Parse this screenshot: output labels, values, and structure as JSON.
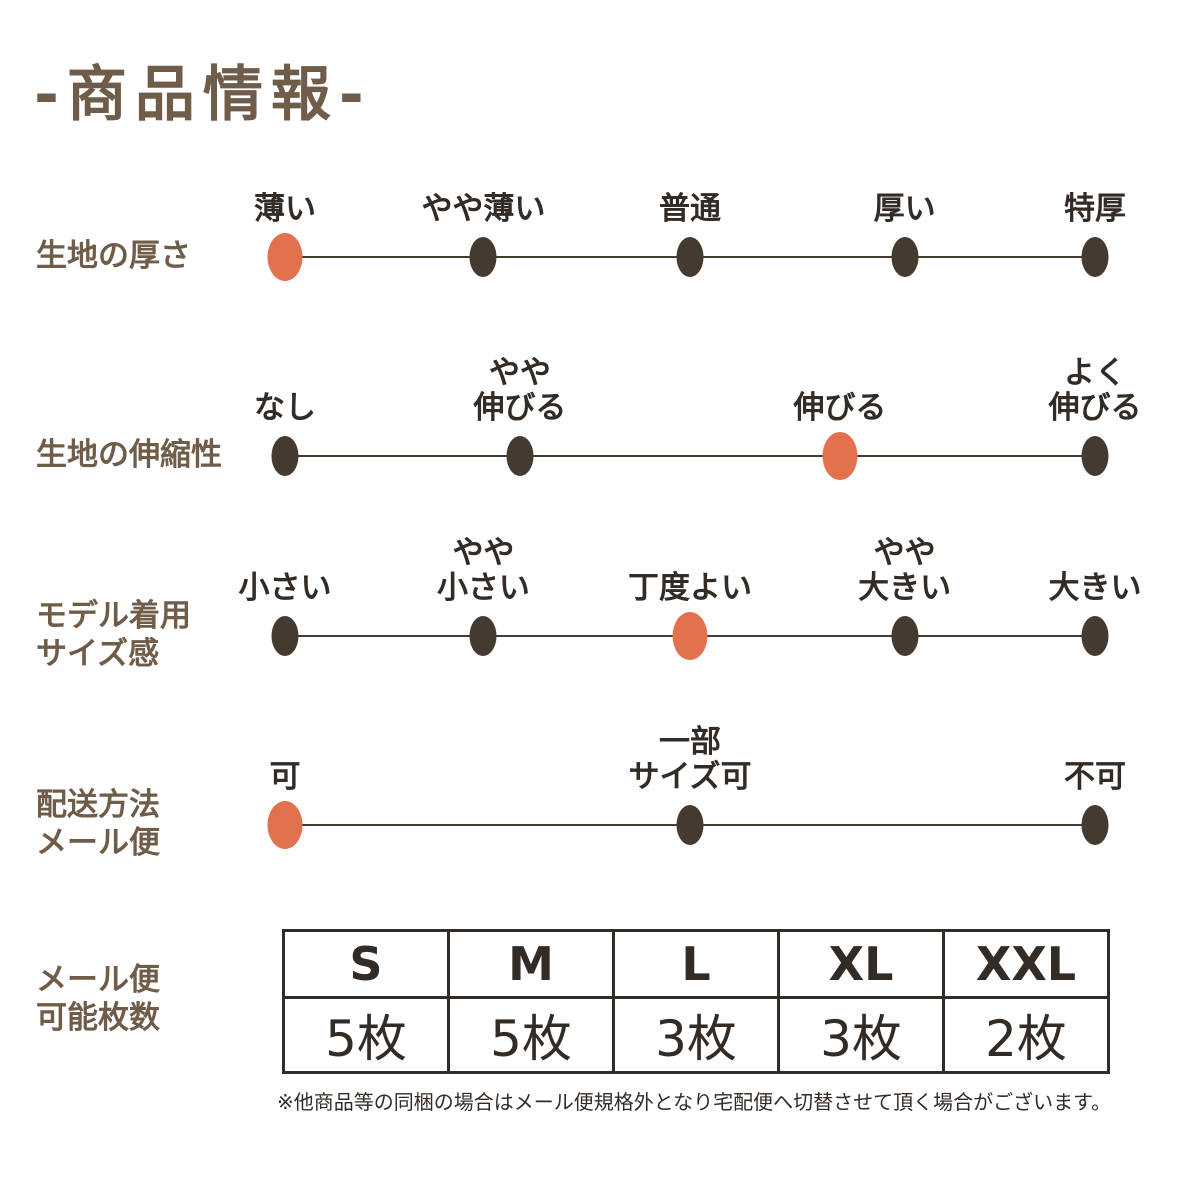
{
  "title": "-商品情報-",
  "colors": {
    "accent": "#E2714E",
    "dot": "#453A30",
    "line": "#453A30",
    "heading_brown": "#6F5C49",
    "text_dark": "#332B25",
    "background": "#FFFFFF"
  },
  "scales": [
    {
      "name": "fabric-thickness",
      "label_lines": [
        "生地の厚さ"
      ],
      "positions": [
        0,
        0.245,
        0.5,
        0.765,
        1
      ],
      "options": [
        {
          "label_lines": [
            "薄い"
          ],
          "selected": true
        },
        {
          "label_lines": [
            "やや薄い"
          ],
          "selected": false
        },
        {
          "label_lines": [
            "普通"
          ],
          "selected": false
        },
        {
          "label_lines": [
            "厚い"
          ],
          "selected": false
        },
        {
          "label_lines": [
            "特厚"
          ],
          "selected": false
        }
      ]
    },
    {
      "name": "fabric-stretch",
      "label_lines": [
        "生地の伸縮性"
      ],
      "positions": [
        0,
        0.29,
        0.685,
        1
      ],
      "options": [
        {
          "label_lines": [
            "なし"
          ],
          "selected": false
        },
        {
          "label_lines": [
            "やや",
            "伸びる"
          ],
          "selected": false
        },
        {
          "label_lines": [
            "伸びる"
          ],
          "selected": true
        },
        {
          "label_lines": [
            "よく",
            "伸びる"
          ],
          "selected": false
        }
      ]
    },
    {
      "name": "model-size-feel",
      "label_lines": [
        "モデル着用",
        "サイズ感"
      ],
      "positions": [
        0,
        0.245,
        0.5,
        0.765,
        1
      ],
      "options": [
        {
          "label_lines": [
            "小さい"
          ],
          "selected": false
        },
        {
          "label_lines": [
            "やや",
            "小さい"
          ],
          "selected": false
        },
        {
          "label_lines": [
            "丁度よい"
          ],
          "selected": true
        },
        {
          "label_lines": [
            "やや",
            "大きい"
          ],
          "selected": false
        },
        {
          "label_lines": [
            "大きい"
          ],
          "selected": false
        }
      ]
    },
    {
      "name": "shipping-mail",
      "label_lines": [
        "配送方法",
        "メール便"
      ],
      "positions": [
        0,
        0.5,
        1
      ],
      "options": [
        {
          "label_lines": [
            "可"
          ],
          "selected": true
        },
        {
          "label_lines": [
            "一部",
            "サイズ可"
          ],
          "selected": false
        },
        {
          "label_lines": [
            "不可"
          ],
          "selected": false
        }
      ]
    }
  ],
  "table": {
    "label_lines": [
      "メール便",
      "可能枚数"
    ],
    "headers": [
      "S",
      "M",
      "L",
      "XL",
      "XXL"
    ],
    "values": [
      "5枚",
      "5枚",
      "3枚",
      "3枚",
      "2枚"
    ]
  },
  "footnote": "※他商品等の同梱の場合はメール便規格外となり宅配便へ切替させて頂く場合がございます。"
}
